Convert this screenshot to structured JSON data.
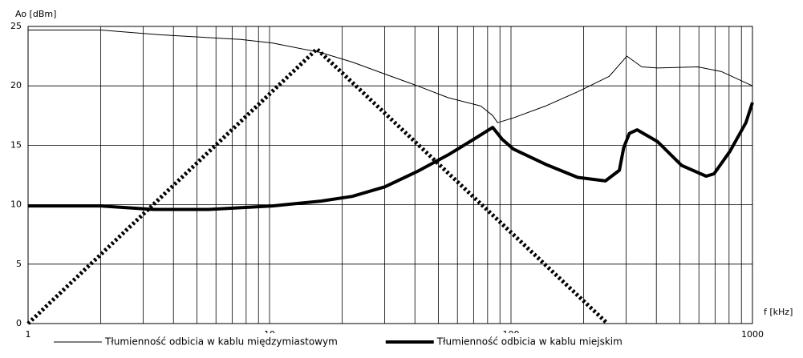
{
  "chart_data": {
    "type": "line",
    "y_label": "Ao [dBm]",
    "x_label": "f [kHz]",
    "xscale": "log",
    "xlim": [
      1,
      1000
    ],
    "xticks": [
      1,
      10,
      100,
      1000
    ],
    "ylim": [
      0,
      25
    ],
    "yticks": [
      0,
      5,
      10,
      15,
      20,
      25
    ],
    "grid": true,
    "series": [
      {
        "name": "Tłumienność odbicia w kablu międzymiastowym",
        "color": "#000000",
        "style": "thin",
        "x": [
          1,
          2,
          3.5,
          7.6,
          10.3,
          16.3,
          22,
          30,
          41,
          55,
          75,
          84,
          88,
          102,
          139,
          189,
          255,
          302,
          348,
          405,
          594,
          745,
          1000
        ],
        "values": [
          24.7,
          24.7,
          24.3,
          23.9,
          23.6,
          22.8,
          22,
          21,
          20,
          19,
          18.3,
          17.5,
          16.9,
          17.3,
          18.3,
          19.5,
          20.8,
          22.5,
          21.6,
          21.5,
          21.6,
          21.2,
          20
        ]
      },
      {
        "name": "Tłumienność odbicia w kablu miejskim",
        "color": "#000000",
        "style": "thick",
        "x": [
          1,
          2,
          3.3,
          5.6,
          10.3,
          16.3,
          22,
          30,
          41,
          55,
          70,
          84,
          92,
          102,
          139,
          189,
          246,
          281,
          293,
          309,
          333,
          405,
          509,
          643,
          693,
          807,
          939,
          1000
        ],
        "values": [
          9.9,
          9.9,
          9.6,
          9.6,
          9.9,
          10.3,
          10.7,
          11.5,
          12.8,
          14.2,
          15.5,
          16.5,
          15.5,
          14.7,
          13.4,
          12.3,
          12.0,
          12.9,
          14.8,
          16.0,
          16.3,
          15.3,
          13.3,
          12.4,
          12.6,
          14.5,
          16.9,
          18.6
        ]
      },
      {
        "color": "#000000",
        "style": "dotted",
        "x": [
          1,
          15.7,
          251
        ],
        "values": [
          0,
          23.1,
          0
        ]
      }
    ]
  }
}
